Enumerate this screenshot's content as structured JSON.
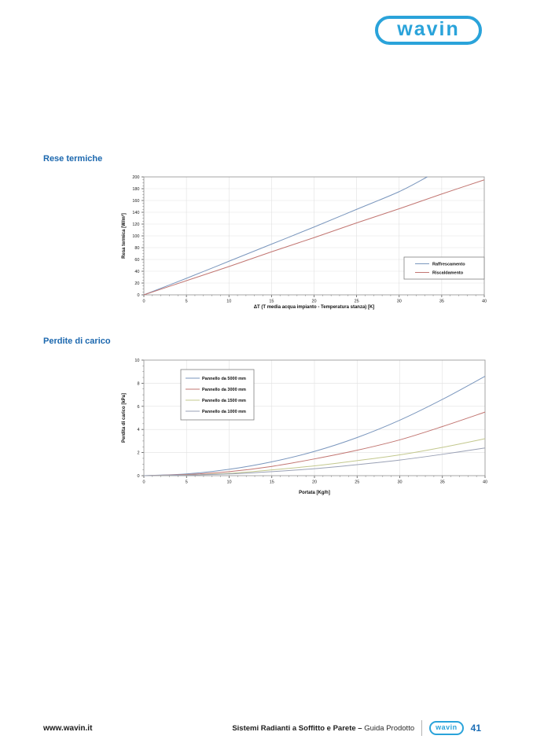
{
  "theme": {
    "title_blue": "#1b67ae",
    "logo_cyan": "#2aa3da",
    "page_number_blue": "#1b6db6",
    "grid_color": "#e1e1e1",
    "plot_border_color": "#9b9b9b"
  },
  "header": {
    "logo_text": "wavin"
  },
  "sections": {
    "rese_termiche_title": "Rese termiche",
    "perdite_carico_title": "Perdite di carico"
  },
  "footer": {
    "website": "www.wavin.it",
    "doc_title_bold": "Sistemi Radianti a Soffitto e Parete –",
    "doc_title_regular": "Guida Prodotto",
    "logo_text": "wavin",
    "page_number": "41"
  },
  "chart_data": [
    {
      "type": "line",
      "name": "rese-termiche",
      "title": "",
      "xlabel": "ΔT (T media acqua impianto - Temperatura stanza) [K]",
      "ylabel": "Resa termica [W/m²]",
      "xlim": [
        0,
        40
      ],
      "ylim": [
        0,
        200
      ],
      "xtick": 5,
      "ytick": 20,
      "xminor": 1,
      "yminor": 5,
      "grid": true,
      "legend_position": "right-center",
      "series": [
        {
          "name": "Raffrescamento",
          "color": "#7a96bd",
          "x": [
            0,
            5,
            10,
            15,
            20,
            25,
            30,
            33.3
          ],
          "y": [
            0,
            28,
            57,
            86,
            115,
            145,
            175,
            200
          ]
        },
        {
          "name": "Riscaldamento",
          "color": "#c27672",
          "x": [
            0,
            5,
            10,
            15,
            20,
            25,
            30,
            35,
            40
          ],
          "y": [
            0,
            24,
            48,
            73,
            97,
            122,
            146,
            171,
            195
          ]
        }
      ]
    },
    {
      "type": "line",
      "name": "perdite-di-carico",
      "title": "",
      "xlabel": "Portata [Kg/h]",
      "ylabel": "Perdita di carico [kPa]",
      "xlim": [
        0,
        40
      ],
      "ylim": [
        0,
        10
      ],
      "xtick": 5,
      "ytick": 2,
      "xminor": 1,
      "yminor": 0.5,
      "grid": true,
      "legend_position": "top-left",
      "series": [
        {
          "name": "Pannello da 5000 mm",
          "color": "#7a96bd",
          "x": [
            0,
            5,
            10,
            15,
            20,
            25,
            30,
            35,
            40
          ],
          "y": [
            0,
            0.15,
            0.55,
            1.2,
            2.1,
            3.3,
            4.8,
            6.6,
            8.6
          ]
        },
        {
          "name": "Pannello da 3000 mm",
          "color": "#c27672",
          "x": [
            0,
            5,
            10,
            15,
            20,
            25,
            30,
            35,
            40
          ],
          "y": [
            0,
            0.1,
            0.35,
            0.8,
            1.45,
            2.2,
            3.1,
            4.25,
            5.5
          ]
        },
        {
          "name": "Pannello da 1500 mm",
          "color": "#c3c88e",
          "x": [
            0,
            5,
            10,
            15,
            20,
            25,
            30,
            35,
            40
          ],
          "y": [
            0,
            0.05,
            0.2,
            0.5,
            0.85,
            1.3,
            1.8,
            2.45,
            3.2
          ]
        },
        {
          "name": "Pannello da 1000 mm",
          "color": "#9aa1b5",
          "x": [
            0,
            5,
            10,
            15,
            20,
            25,
            30,
            35,
            40
          ],
          "y": [
            0,
            0.05,
            0.15,
            0.35,
            0.6,
            0.95,
            1.35,
            1.85,
            2.4
          ]
        }
      ]
    }
  ]
}
